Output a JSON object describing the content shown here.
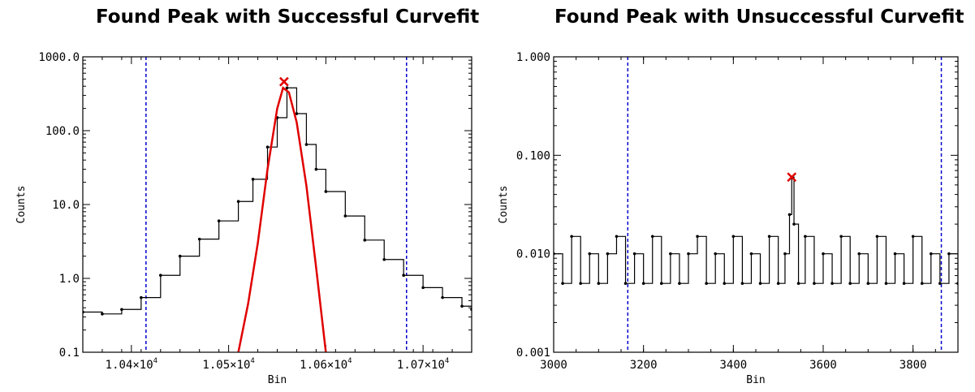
{
  "colors": {
    "data": "#000000",
    "fit": "#e00000",
    "bound": "#0000cc",
    "marker": "#e00000"
  },
  "chart_data": [
    {
      "type": "line",
      "title": "Found Peak with Successful Curvefit",
      "xlabel": "Bin",
      "ylabel": "Counts",
      "yscale": "log",
      "xlim": [
        10350,
        10750
      ],
      "ylim": [
        0.1,
        1000
      ],
      "x_ticks": [
        10400,
        10500,
        10600,
        10700
      ],
      "x_tick_labels": [
        {
          "mant": "1.04",
          "times": "×",
          "base": "10",
          "exp": "4"
        },
        {
          "mant": "1.05",
          "times": "×",
          "base": "10",
          "exp": "4"
        },
        {
          "mant": "1.06",
          "times": "×",
          "base": "10",
          "exp": "4"
        },
        {
          "mant": "1.07",
          "times": "×",
          "base": "10",
          "exp": "4"
        }
      ],
      "y_ticks": [
        0.1,
        1,
        10,
        100,
        1000
      ],
      "y_tick_labels": [
        "0.1",
        "1.0",
        "10.0",
        "100.0",
        "1000.0"
      ],
      "grid": false,
      "series": [
        {
          "style": "stepped line with dot markers",
          "x": [
            10350,
            10370,
            10390,
            10410,
            10430,
            10450,
            10470,
            10490,
            10510,
            10525,
            10540,
            10550,
            10560,
            10570,
            10580,
            10590,
            10600,
            10620,
            10640,
            10660,
            10680,
            10700,
            10720,
            10740,
            10750
          ],
          "y": [
            0.35,
            0.33,
            0.38,
            0.55,
            1.1,
            2.0,
            3.4,
            6.0,
            11.0,
            22.0,
            60.0,
            150.0,
            380.0,
            170.0,
            65.0,
            30.0,
            15.0,
            7.0,
            3.3,
            1.8,
            1.1,
            0.75,
            0.55,
            0.42,
            0.38
          ]
        },
        {
          "style": "fitted gaussian",
          "x": [
            10510,
            10520,
            10530,
            10540,
            10550,
            10556,
            10562,
            10570,
            10580,
            10590,
            10600
          ],
          "y": [
            0.1,
            0.45,
            3.0,
            30.0,
            200.0,
            380.0,
            330.0,
            130.0,
            18.0,
            1.4,
            0.1
          ]
        }
      ],
      "markers": [
        {
          "x": 10557,
          "y": 460
        }
      ],
      "vlines": [
        10415,
        10683
      ]
    },
    {
      "type": "line",
      "title": "Found Peak with Unsuccessful Curvefit",
      "xlabel": "Bin",
      "ylabel": "Counts",
      "yscale": "log",
      "xlim": [
        3000,
        3900
      ],
      "ylim": [
        0.001,
        1.0
      ],
      "x_ticks": [
        3000,
        3200,
        3400,
        3600,
        3800
      ],
      "x_tick_labels": [
        "3000",
        "3200",
        "3400",
        "3600",
        "3800"
      ],
      "y_ticks": [
        0.001,
        0.01,
        0.1,
        1.0
      ],
      "y_tick_labels": [
        "0.001",
        "0.010",
        "0.100",
        "1.000"
      ],
      "grid": false,
      "series": [
        {
          "style": "stepped line with dot markers",
          "x": [
            3000,
            3020,
            3040,
            3060,
            3080,
            3100,
            3120,
            3140,
            3160,
            3180,
            3200,
            3220,
            3240,
            3260,
            3280,
            3300,
            3320,
            3340,
            3360,
            3380,
            3400,
            3420,
            3440,
            3460,
            3480,
            3500,
            3515,
            3525,
            3530,
            3535,
            3545,
            3560,
            3580,
            3600,
            3620,
            3640,
            3660,
            3680,
            3700,
            3720,
            3740,
            3760,
            3780,
            3800,
            3820,
            3840,
            3860,
            3880,
            3900
          ],
          "y": [
            0.01,
            0.005,
            0.015,
            0.005,
            0.01,
            0.005,
            0.01,
            0.015,
            0.005,
            0.01,
            0.005,
            0.015,
            0.005,
            0.01,
            0.005,
            0.01,
            0.015,
            0.005,
            0.01,
            0.005,
            0.015,
            0.005,
            0.01,
            0.005,
            0.015,
            0.005,
            0.01,
            0.025,
            0.06,
            0.02,
            0.005,
            0.015,
            0.005,
            0.01,
            0.005,
            0.015,
            0.005,
            0.01,
            0.005,
            0.015,
            0.005,
            0.01,
            0.005,
            0.015,
            0.005,
            0.01,
            0.005,
            0.01,
            0.005
          ]
        }
      ],
      "markers": [
        {
          "x": 3530,
          "y": 0.06
        }
      ],
      "vlines": [
        3165,
        3863
      ]
    }
  ]
}
